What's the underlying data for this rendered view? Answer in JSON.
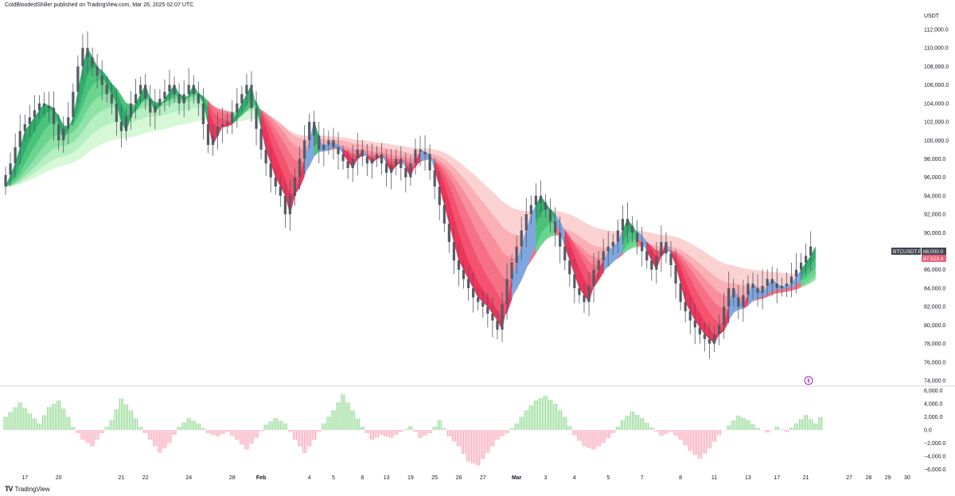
{
  "header": {
    "publisher": "ColdBloodedShiller published on TradingView.com, Mar 26, 2025 02:07 UTC",
    "unit": "USDT"
  },
  "footer": {
    "brand": "TradingView"
  },
  "colors": {
    "green_dark": "#2fae6a",
    "green_light": "#d6f8d6",
    "red_dark": "#f0345a",
    "red_light": "#fbd2d2",
    "blue": "#7ea7e0",
    "candle": "#555a66",
    "osc_green": "#8fd88f",
    "osc_red": "#f7a1b5",
    "badge_symbol": "#434651",
    "badge_price": "#e8617a"
  },
  "chart_data": [
    {
      "type": "line",
      "series_label": "BTCUSDT.P",
      "y_unit": "USDT",
      "ylim": [
        73500,
        113000
      ],
      "y_ticks": [
        "112,000.0",
        "110,000.0",
        "108,000.0",
        "106,000.0",
        "104,000.0",
        "102,000.0",
        "100,000.0",
        "98,000.0",
        "96,000.0",
        "94,000.0",
        "92,000.0",
        "90,000.0",
        "88,000.0",
        "86,000.0",
        "84,000.0",
        "82,000.0",
        "80,000.0",
        "78,000.0",
        "76,000.0",
        "74,000.0"
      ],
      "x_ticks": [
        {
          "label": "17",
          "i": 4,
          "bold": false
        },
        {
          "label": "20",
          "i": 11,
          "bold": false
        },
        {
          "label": "21",
          "i": 24,
          "bold": false
        },
        {
          "label": "22",
          "i": 29,
          "bold": false
        },
        {
          "label": "24",
          "i": 38,
          "bold": false
        },
        {
          "label": "28",
          "i": 47,
          "bold": false
        },
        {
          "label": "Feb",
          "i": 53,
          "bold": true
        },
        {
          "label": "4",
          "i": 63,
          "bold": false
        },
        {
          "label": "5",
          "i": 68,
          "bold": false
        },
        {
          "label": "8",
          "i": 74,
          "bold": false
        },
        {
          "label": "13",
          "i": 79,
          "bold": false
        },
        {
          "label": "19",
          "i": 84,
          "bold": false
        },
        {
          "label": "25",
          "i": 89,
          "bold": false
        },
        {
          "label": "26",
          "i": 94,
          "bold": false
        },
        {
          "label": "27",
          "i": 99,
          "bold": false
        },
        {
          "label": "Mar",
          "i": 106,
          "bold": true
        },
        {
          "label": "3",
          "i": 112,
          "bold": false
        },
        {
          "label": "4",
          "i": 118,
          "bold": false
        },
        {
          "label": "5",
          "i": 125,
          "bold": false
        },
        {
          "label": "7",
          "i": 132,
          "bold": false
        },
        {
          "label": "8",
          "i": 140,
          "bold": false
        },
        {
          "label": "11",
          "i": 147,
          "bold": false
        },
        {
          "label": "13",
          "i": 154,
          "bold": false
        },
        {
          "label": "17",
          "i": 160,
          "bold": false
        },
        {
          "label": "21",
          "i": 166,
          "bold": false
        },
        {
          "label": "27",
          "i": 175,
          "bold": false
        },
        {
          "label": "28",
          "i": 179,
          "bold": false
        },
        {
          "label": "29",
          "i": 183,
          "bold": false
        },
        {
          "label": "30",
          "i": 187,
          "bold": false
        }
      ],
      "x_count": 190,
      "price_keys": [
        [
          0,
          95000
        ],
        [
          2,
          97500
        ],
        [
          4,
          101000
        ],
        [
          6,
          102500
        ],
        [
          8,
          104000
        ],
        [
          10,
          103500
        ],
        [
          12,
          100000
        ],
        [
          14,
          102500
        ],
        [
          16,
          108000
        ],
        [
          17,
          110000
        ],
        [
          19,
          108000
        ],
        [
          21,
          106000
        ],
        [
          23,
          104000
        ],
        [
          24,
          102000
        ],
        [
          25,
          101000
        ],
        [
          27,
          104000
        ],
        [
          29,
          106000
        ],
        [
          31,
          103000
        ],
        [
          33,
          104500
        ],
        [
          35,
          106000
        ],
        [
          37,
          104000
        ],
        [
          39,
          106000
        ],
        [
          41,
          104000
        ],
        [
          43,
          99500
        ],
        [
          45,
          101500
        ],
        [
          47,
          102000
        ],
        [
          49,
          104000
        ],
        [
          51,
          106000
        ],
        [
          52,
          103500
        ],
        [
          54,
          99000
        ],
        [
          56,
          96000
        ],
        [
          58,
          94000
        ],
        [
          59,
          92000
        ],
        [
          61,
          96000
        ],
        [
          63,
          100000
        ],
        [
          64,
          102000
        ],
        [
          66,
          99000
        ],
        [
          68,
          100000
        ],
        [
          70,
          98500
        ],
        [
          72,
          97000
        ],
        [
          74,
          99000
        ],
        [
          76,
          97500
        ],
        [
          78,
          98500
        ],
        [
          80,
          96500
        ],
        [
          82,
          98000
        ],
        [
          84,
          96000
        ],
        [
          86,
          99000
        ],
        [
          88,
          98500
        ],
        [
          90,
          95000
        ],
        [
          92,
          91000
        ],
        [
          94,
          87000
        ],
        [
          96,
          85000
        ],
        [
          98,
          83000
        ],
        [
          100,
          82000
        ],
        [
          102,
          80500
        ],
        [
          103,
          79500
        ],
        [
          105,
          85000
        ],
        [
          107,
          88500
        ],
        [
          109,
          92000
        ],
        [
          111,
          94000
        ],
        [
          113,
          92500
        ],
        [
          115,
          90000
        ],
        [
          117,
          87000
        ],
        [
          119,
          84000
        ],
        [
          121,
          82500
        ],
        [
          123,
          86000
        ],
        [
          125,
          88000
        ],
        [
          127,
          89000
        ],
        [
          129,
          91500
        ],
        [
          131,
          90000
        ],
        [
          133,
          88000
        ],
        [
          135,
          86000
        ],
        [
          137,
          89000
        ],
        [
          139,
          86500
        ],
        [
          141,
          82500
        ],
        [
          143,
          80500
        ],
        [
          145,
          79000
        ],
        [
          147,
          78000
        ],
        [
          149,
          80000
        ],
        [
          151,
          84000
        ],
        [
          153,
          82000
        ],
        [
          155,
          84500
        ],
        [
          157,
          83500
        ],
        [
          159,
          85000
        ],
        [
          161,
          84000
        ],
        [
          163,
          84500
        ],
        [
          165,
          86000
        ],
        [
          167,
          87500
        ],
        [
          168,
          88500
        ]
      ],
      "series": [
        {
          "name": "BTCUSDT.P",
          "last_value": "88,000.0"
        },
        {
          "name": "",
          "last_value": "87,523.4"
        }
      ]
    },
    {
      "type": "bar",
      "ylim": [
        -7200,
        7200
      ],
      "y_ticks": [
        "6,000.0",
        "4,000.0",
        "2,000.0",
        "0.0",
        "−2,000.0",
        "−4,000.0",
        "−6,000.0"
      ],
      "x_count": 190,
      "osc_keys": [
        [
          0,
          2000
        ],
        [
          3,
          4200
        ],
        [
          5,
          2500
        ],
        [
          7,
          1000
        ],
        [
          9,
          3500
        ],
        [
          11,
          4500
        ],
        [
          13,
          2000
        ],
        [
          14,
          500
        ],
        [
          16,
          -1500
        ],
        [
          18,
          -2500
        ],
        [
          20,
          -500
        ],
        [
          22,
          1500
        ],
        [
          24,
          4800
        ],
        [
          26,
          3000
        ],
        [
          28,
          500
        ],
        [
          30,
          -1500
        ],
        [
          32,
          -3500
        ],
        [
          34,
          -2000
        ],
        [
          36,
          500
        ],
        [
          38,
          1800
        ],
        [
          40,
          1000
        ],
        [
          42,
          -500
        ],
        [
          44,
          -1000
        ],
        [
          46,
          -300
        ],
        [
          48,
          -1500
        ],
        [
          50,
          -3000
        ],
        [
          52,
          -1200
        ],
        [
          54,
          800
        ],
        [
          56,
          1800
        ],
        [
          58,
          1000
        ],
        [
          60,
          -1500
        ],
        [
          62,
          -3500
        ],
        [
          64,
          -1500
        ],
        [
          66,
          1000
        ],
        [
          68,
          3000
        ],
        [
          70,
          5400
        ],
        [
          72,
          3000
        ],
        [
          74,
          500
        ],
        [
          76,
          -1500
        ],
        [
          78,
          -800
        ],
        [
          80,
          -1200
        ],
        [
          82,
          -300
        ],
        [
          84,
          600
        ],
        [
          86,
          -1200
        ],
        [
          88,
          -500
        ],
        [
          90,
          1500
        ],
        [
          92,
          -1000
        ],
        [
          94,
          -2500
        ],
        [
          96,
          -4800
        ],
        [
          98,
          -5400
        ],
        [
          100,
          -3500
        ],
        [
          102,
          -1500
        ],
        [
          104,
          -500
        ],
        [
          106,
          1000
        ],
        [
          108,
          3000
        ],
        [
          110,
          4500
        ],
        [
          112,
          5200
        ],
        [
          114,
          4000
        ],
        [
          116,
          2000
        ],
        [
          118,
          -800
        ],
        [
          120,
          -2500
        ],
        [
          122,
          -3000
        ],
        [
          124,
          -2000
        ],
        [
          126,
          -500
        ],
        [
          128,
          1500
        ],
        [
          130,
          2800
        ],
        [
          132,
          1800
        ],
        [
          134,
          400
        ],
        [
          136,
          -900
        ],
        [
          138,
          -300
        ],
        [
          140,
          -1500
        ],
        [
          142,
          -3200
        ],
        [
          144,
          -4400
        ],
        [
          146,
          -2800
        ],
        [
          148,
          -800
        ],
        [
          150,
          700
        ],
        [
          152,
          2200
        ],
        [
          154,
          1500
        ],
        [
          156,
          300
        ],
        [
          158,
          -400
        ],
        [
          160,
          500
        ],
        [
          162,
          -300
        ],
        [
          164,
          1000
        ],
        [
          166,
          2300
        ],
        [
          168,
          1000
        ],
        [
          169,
          2000
        ]
      ]
    }
  ]
}
